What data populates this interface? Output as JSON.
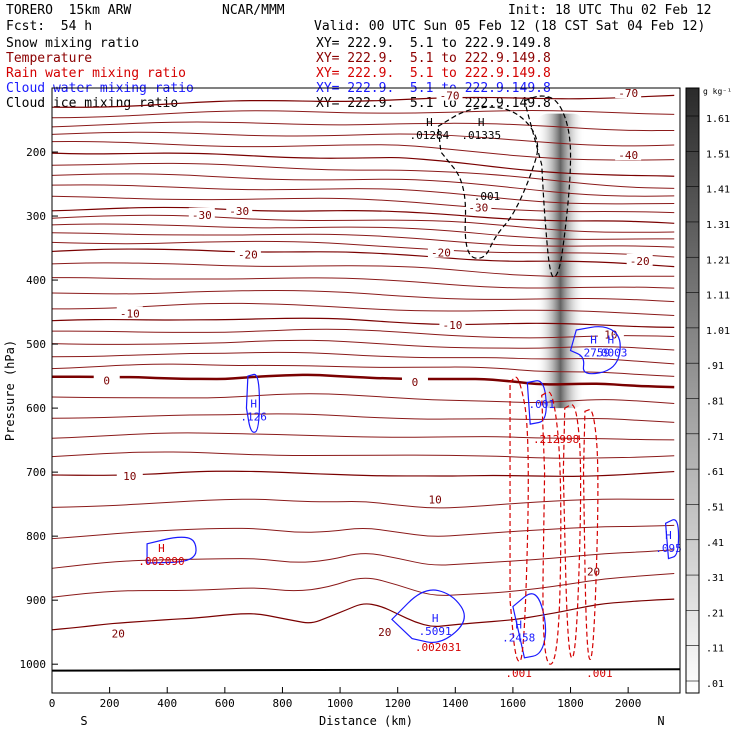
{
  "header": {
    "model": "TORERO  15km ARW",
    "source": "NCAR/MMM",
    "init": "Init: 18 UTC Thu 02 Feb 12",
    "fcst": "Fcst:  54 h",
    "valid": "Valid: 00 UTC Sun 05 Feb 12 (18 CST Sat 04 Feb 12)",
    "fields": [
      {
        "label": "Snow mixing ratio",
        "xy": "XY= 222.9.  5.1 to 222.9.149.8",
        "color": "#000000"
      },
      {
        "label": "Temperature",
        "xy": "XY= 222.9.  5.1 to 222.9.149.8",
        "color": "#8b0000"
      },
      {
        "label": "Rain water mixing ratio",
        "xy": "XY= 222.9.  5.1 to 222.9.149.8",
        "color": "#d40000"
      },
      {
        "label": "Cloud water mixing ratio",
        "xy": "XY= 222.9.  5.1 to 222.9.149.8",
        "color": "#1a1aff"
      },
      {
        "label": "Cloud ice mixing ratio",
        "xy": "XY= 222.9.  5.1 to 222.9.149.8",
        "color": "#000000"
      }
    ]
  },
  "chart_data": {
    "type": "contour",
    "xlabel": "Distance (km)",
    "ylabel": "Pressure (hPa)",
    "xlim": [
      0,
      2180
    ],
    "ylim": [
      1045,
      100
    ],
    "x_ticks": [
      0,
      200,
      400,
      600,
      800,
      1000,
      1200,
      1400,
      1600,
      1800,
      2000
    ],
    "y_ticks": [
      200,
      300,
      400,
      500,
      600,
      700,
      800,
      900,
      1000
    ],
    "endpoints": {
      "left": "S",
      "right": "N"
    },
    "colorbar": {
      "unit": "g kg⁻¹",
      "levels": [
        "1.61",
        "1.51",
        "1.41",
        "1.31",
        "1.21",
        "1.11",
        "1.01",
        ".91",
        ".81",
        ".71",
        ".61",
        ".51",
        ".41",
        ".31",
        ".21",
        ".11",
        ".01"
      ]
    },
    "temperature_contours": [
      {
        "value": -70,
        "label": "-70",
        "points": [
          [
            0,
            130
          ],
          [
            400,
            125
          ],
          [
            800,
            120
          ],
          [
            1200,
            118
          ],
          [
            1600,
            116
          ],
          [
            2000,
            114
          ],
          [
            2180,
            113
          ]
        ]
      },
      {
        "value": -40,
        "label": "-40",
        "points": [
          [
            0,
            200
          ],
          [
            600,
            205
          ],
          [
            1200,
            210
          ],
          [
            1600,
            225
          ],
          [
            1800,
            232
          ],
          [
            2000,
            238
          ],
          [
            2180,
            240
          ]
        ]
      },
      {
        "value": -30,
        "label": "-30",
        "points": [
          [
            0,
            290
          ],
          [
            500,
            288
          ],
          [
            1000,
            292
          ],
          [
            1400,
            298
          ],
          [
            1800,
            308
          ],
          [
            2180,
            312
          ]
        ]
      },
      {
        "value": -20,
        "label": "-20",
        "points": [
          [
            0,
            355
          ],
          [
            500,
            352
          ],
          [
            1000,
            358
          ],
          [
            1300,
            362
          ],
          [
            1600,
            370
          ],
          [
            2000,
            375
          ],
          [
            2180,
            378
          ]
        ]
      },
      {
        "value": -10,
        "label": "-10",
        "points": [
          [
            0,
            465
          ],
          [
            500,
            460
          ],
          [
            1000,
            462
          ],
          [
            1400,
            468
          ],
          [
            1800,
            470
          ],
          [
            2180,
            472
          ]
        ]
      },
      {
        "value": 0,
        "label": "0",
        "points": [
          [
            0,
            553
          ],
          [
            300,
            550
          ],
          [
            600,
            555
          ],
          [
            900,
            549
          ],
          [
            1200,
            552
          ],
          [
            1500,
            556
          ],
          [
            1700,
            565
          ],
          [
            1900,
            560
          ],
          [
            2180,
            567
          ]
        ]
      },
      {
        "value": 10,
        "label": "10",
        "points": [
          [
            0,
            705
          ],
          [
            500,
            700
          ],
          [
            1000,
            702
          ],
          [
            1400,
            708
          ],
          [
            1800,
            705
          ],
          [
            2180,
            700
          ]
        ]
      },
      {
        "value": 20,
        "label": "20",
        "points": [
          [
            0,
            945
          ],
          [
            200,
            935
          ],
          [
            500,
            930
          ],
          [
            700,
            920
          ],
          [
            900,
            935
          ],
          [
            1100,
            900
          ],
          [
            1300,
            945
          ],
          [
            1600,
            930
          ],
          [
            1900,
            905
          ],
          [
            2180,
            900
          ]
        ]
      }
    ],
    "isolines_label_values": [
      "-70",
      "-40",
      "-30",
      "-30",
      "-30",
      "-20",
      "-20",
      "-20",
      "-10",
      "-10",
      "10",
      "10",
      "20",
      "20",
      "20",
      "0",
      "0"
    ],
    "snow_maxima": [
      {
        "label": "H",
        "value": ".01284",
        "x": 1310,
        "p": 175
      },
      {
        "label": "H",
        "value": ".01335",
        "x": 1490,
        "p": 175
      },
      {
        "value": ".001",
        "x": 1510,
        "p": 270
      }
    ],
    "cloud_water_maxima": [
      {
        "label": "H",
        "value": ".126",
        "x": 700,
        "p": 615
      },
      {
        "label": "H",
        "value": ".2759",
        "x": 1880,
        "p": 515
      },
      {
        "label": "H",
        "value": ".0003",
        "x": 1940,
        "p": 515
      },
      {
        "value": ".001",
        "x": 1700,
        "p": 595
      },
      {
        "label": "H",
        "value": ".095",
        "x": 2140,
        "p": 820
      },
      {
        "label": "H",
        "value": ".5091",
        "x": 1330,
        "p": 950
      },
      {
        "label": "H",
        "value": ".2458",
        "x": 1620,
        "p": 960
      }
    ],
    "rain_maxima": [
      {
        "label": "H",
        "value": ".002090",
        "x": 380,
        "p": 840
      },
      {
        "value": ".212998",
        "x": 1750,
        "p": 650
      },
      {
        "value": ".002031",
        "x": 1340,
        "p": 975
      },
      {
        "value": ".001",
        "x": 1620,
        "p": 1015
      },
      {
        "value": ".001",
        "x": 1900,
        "p": 1015
      }
    ]
  }
}
